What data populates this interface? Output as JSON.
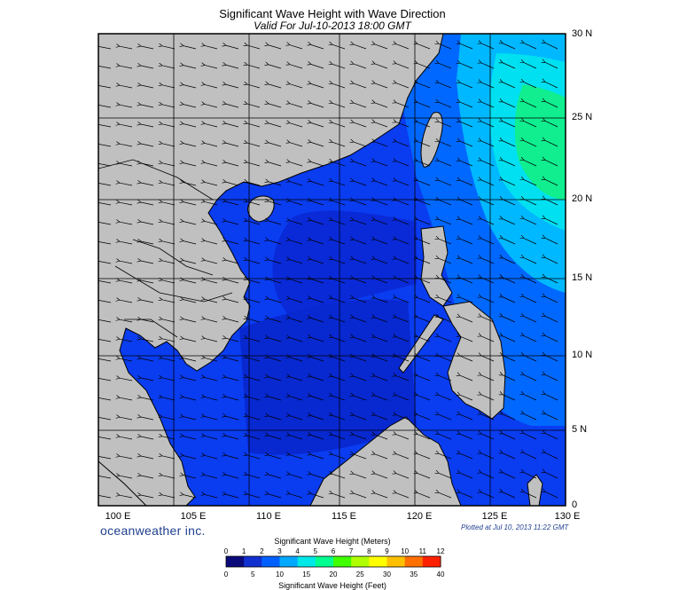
{
  "title": "Significant Wave Height with Wave Direction",
  "subtitle": "Valid For Jul-10-2013 18:00 GMT",
  "brand": "oceanweather inc.",
  "plotted": "Plotted at Jul 10, 2013 11:22 GMT",
  "lat_labels": [
    "30 N",
    "25 N",
    "20 N",
    "15 N",
    "10 N",
    "5 N",
    "0"
  ],
  "lon_labels": [
    "100 E",
    "105 E",
    "110 E",
    "115 E",
    "120 E",
    "125 E",
    "130 E"
  ],
  "legend": {
    "meters_title": "Significant Wave Height (Meters)",
    "feet_title": "Significant Wave Height (Feet)",
    "meters_ticks": [
      "0",
      "1",
      "2",
      "3",
      "4",
      "5",
      "6",
      "7",
      "8",
      "9",
      "10",
      "11",
      "12"
    ],
    "feet_ticks": [
      "0",
      "5",
      "10",
      "15",
      "20",
      "25",
      "30",
      "35",
      "40"
    ],
    "colors": [
      "#0a0a7a",
      "#1030d0",
      "#0060ff",
      "#00a8ff",
      "#00e8e8",
      "#00ff90",
      "#40ff00",
      "#b0ff00",
      "#ffff00",
      "#ffc000",
      "#ff7000",
      "#ff2000"
    ]
  },
  "colors": {
    "land": "#c0c0c0",
    "coast": "#000000",
    "deep_sea": "#0a2ad8",
    "sea": "#0a3cf0",
    "mid": "#0070ff",
    "cyan": "#00d8f8",
    "green": "#10ee90"
  }
}
